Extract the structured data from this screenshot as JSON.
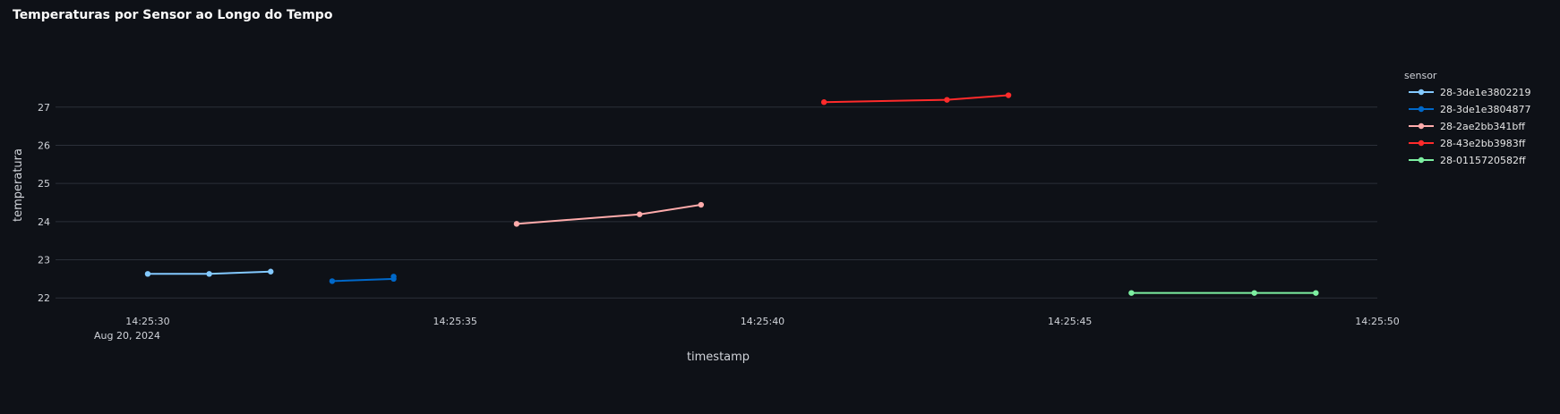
{
  "chart_data": {
    "type": "line",
    "title": "Temperaturas por Sensor ao Longo do Tempo",
    "xlabel": "timestamp",
    "ylabel": "temperatura",
    "date_label": "Aug 20, 2024",
    "x_ticks": [
      "14:25:30",
      "14:25:35",
      "14:25:40",
      "14:25:45",
      "14:25:50"
    ],
    "xlim": [
      "14:25:28.5",
      "14:25:50"
    ],
    "y_ticks": [
      22,
      23,
      24,
      25,
      26,
      27
    ],
    "ylim": [
      21.7,
      28.4
    ],
    "grid": true,
    "legend_title": "sensor",
    "legend_position": "right",
    "series": [
      {
        "name": "28-3de1e3802219",
        "color": "#83c9ff",
        "points": [
          [
            "14:25:30",
            22.63
          ],
          [
            "14:25:31",
            22.63
          ],
          [
            "14:25:32",
            22.69
          ]
        ]
      },
      {
        "name": "28-3de1e3804877",
        "color": "#0068c9",
        "points": [
          [
            "14:25:33",
            22.44
          ],
          [
            "14:25:34",
            22.5
          ],
          [
            "14:25:34",
            22.56
          ]
        ]
      },
      {
        "name": "28-2ae2bb341bff",
        "color": "#ffabab",
        "points": [
          [
            "14:25:36",
            23.94
          ],
          [
            "14:25:38",
            24.19
          ],
          [
            "14:25:39",
            24.44
          ]
        ]
      },
      {
        "name": "28-43e2bb3983ff",
        "color": "#ff2b2b",
        "points": [
          [
            "14:25:41",
            27.13
          ],
          [
            "14:25:43",
            27.19
          ],
          [
            "14:25:44",
            27.31
          ]
        ]
      },
      {
        "name": "28-0115720582ff",
        "color": "#7defa1",
        "points": [
          [
            "14:25:46",
            22.13
          ],
          [
            "14:25:48",
            22.13
          ],
          [
            "14:25:49",
            22.13
          ]
        ]
      }
    ]
  }
}
